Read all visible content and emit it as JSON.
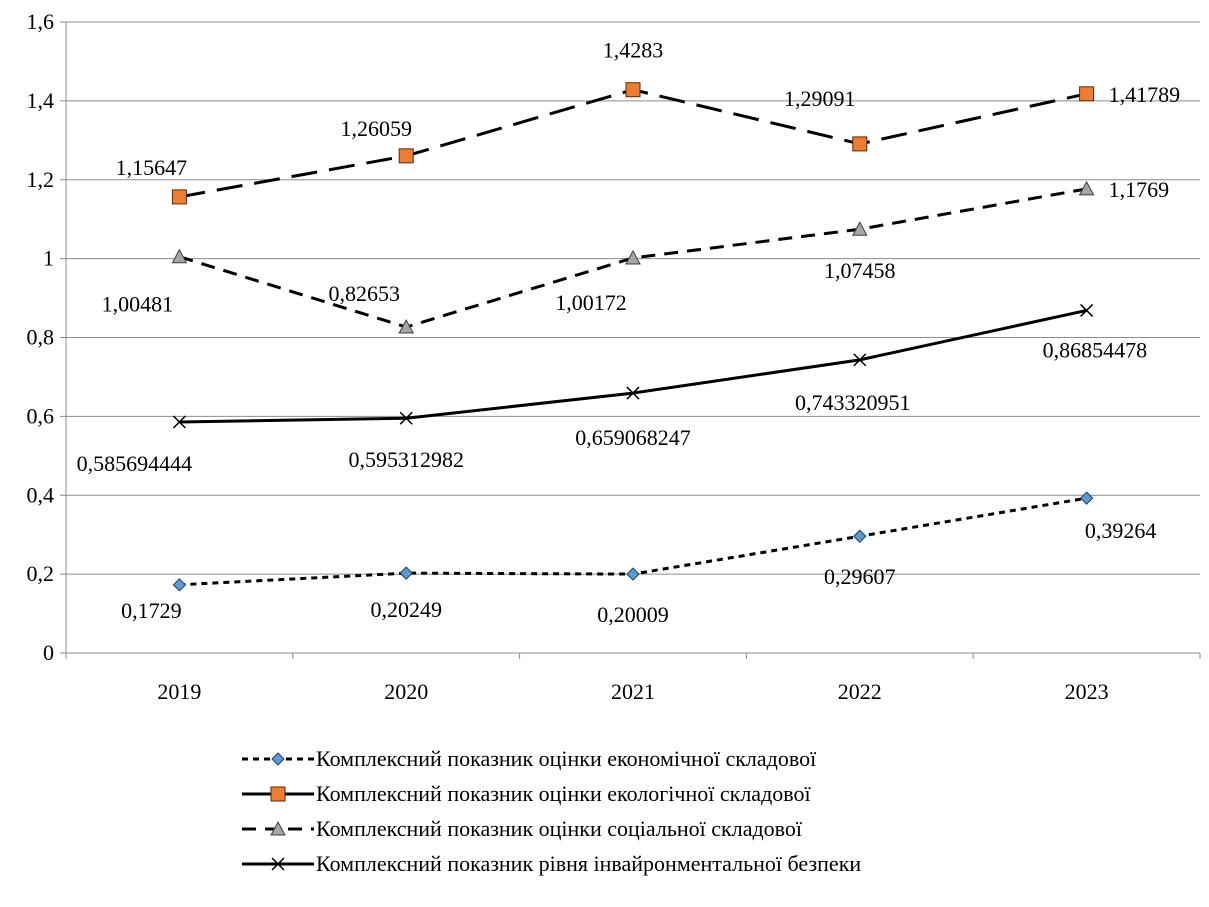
{
  "chart_data": {
    "type": "line",
    "categories": [
      "2019",
      "2020",
      "2021",
      "2022",
      "2023"
    ],
    "ylim": [
      0,
      1.6
    ],
    "yticks": [
      "0",
      "0,2",
      "0,4",
      "0,6",
      "0,8",
      "1",
      "1,2",
      "1,4",
      "1,6"
    ],
    "grid": true,
    "legend_position": "bottom",
    "series": [
      {
        "name": "Комплексний показник оцінки економічної складової",
        "values": [
          0.1729,
          0.20249,
          0.20009,
          0.29607,
          0.39264
        ],
        "labels": [
          "0,1729",
          "0,20249",
          "0,20009",
          "0,29607",
          "0,39264"
        ],
        "line_style": "short-dash",
        "marker": "diamond",
        "marker_color": "#5B9BD5"
      },
      {
        "name": "Комплексний показник оцінки екологічної складової",
        "values": [
          1.15647,
          1.26059,
          1.4283,
          1.29091,
          1.41789
        ],
        "labels": [
          "1,15647",
          "1,26059",
          "1,4283",
          "1,29091",
          "1,41789"
        ],
        "line_style": "long-dash",
        "marker": "square",
        "marker_color": "#ED7D31"
      },
      {
        "name": "Комплексний показник оцінки соціальної складової",
        "values": [
          1.00481,
          0.82653,
          1.00172,
          1.07458,
          1.1769
        ],
        "labels": [
          "1,00481",
          "0,82653",
          "1,00172",
          "1,07458",
          "1,1769"
        ],
        "line_style": "dash",
        "marker": "triangle",
        "marker_color": "#A5A5A5"
      },
      {
        "name": "Комплексний показник рівня інвайронментальної безпеки",
        "values": [
          0.585694444,
          0.595312982,
          0.659068247,
          0.743320951,
          0.86854478
        ],
        "labels": [
          "0,585694444",
          "0,595312982",
          "0,659068247",
          "0,743320951",
          "0,86854478"
        ],
        "line_style": "solid",
        "marker": "x",
        "marker_color": "#000000"
      }
    ]
  }
}
